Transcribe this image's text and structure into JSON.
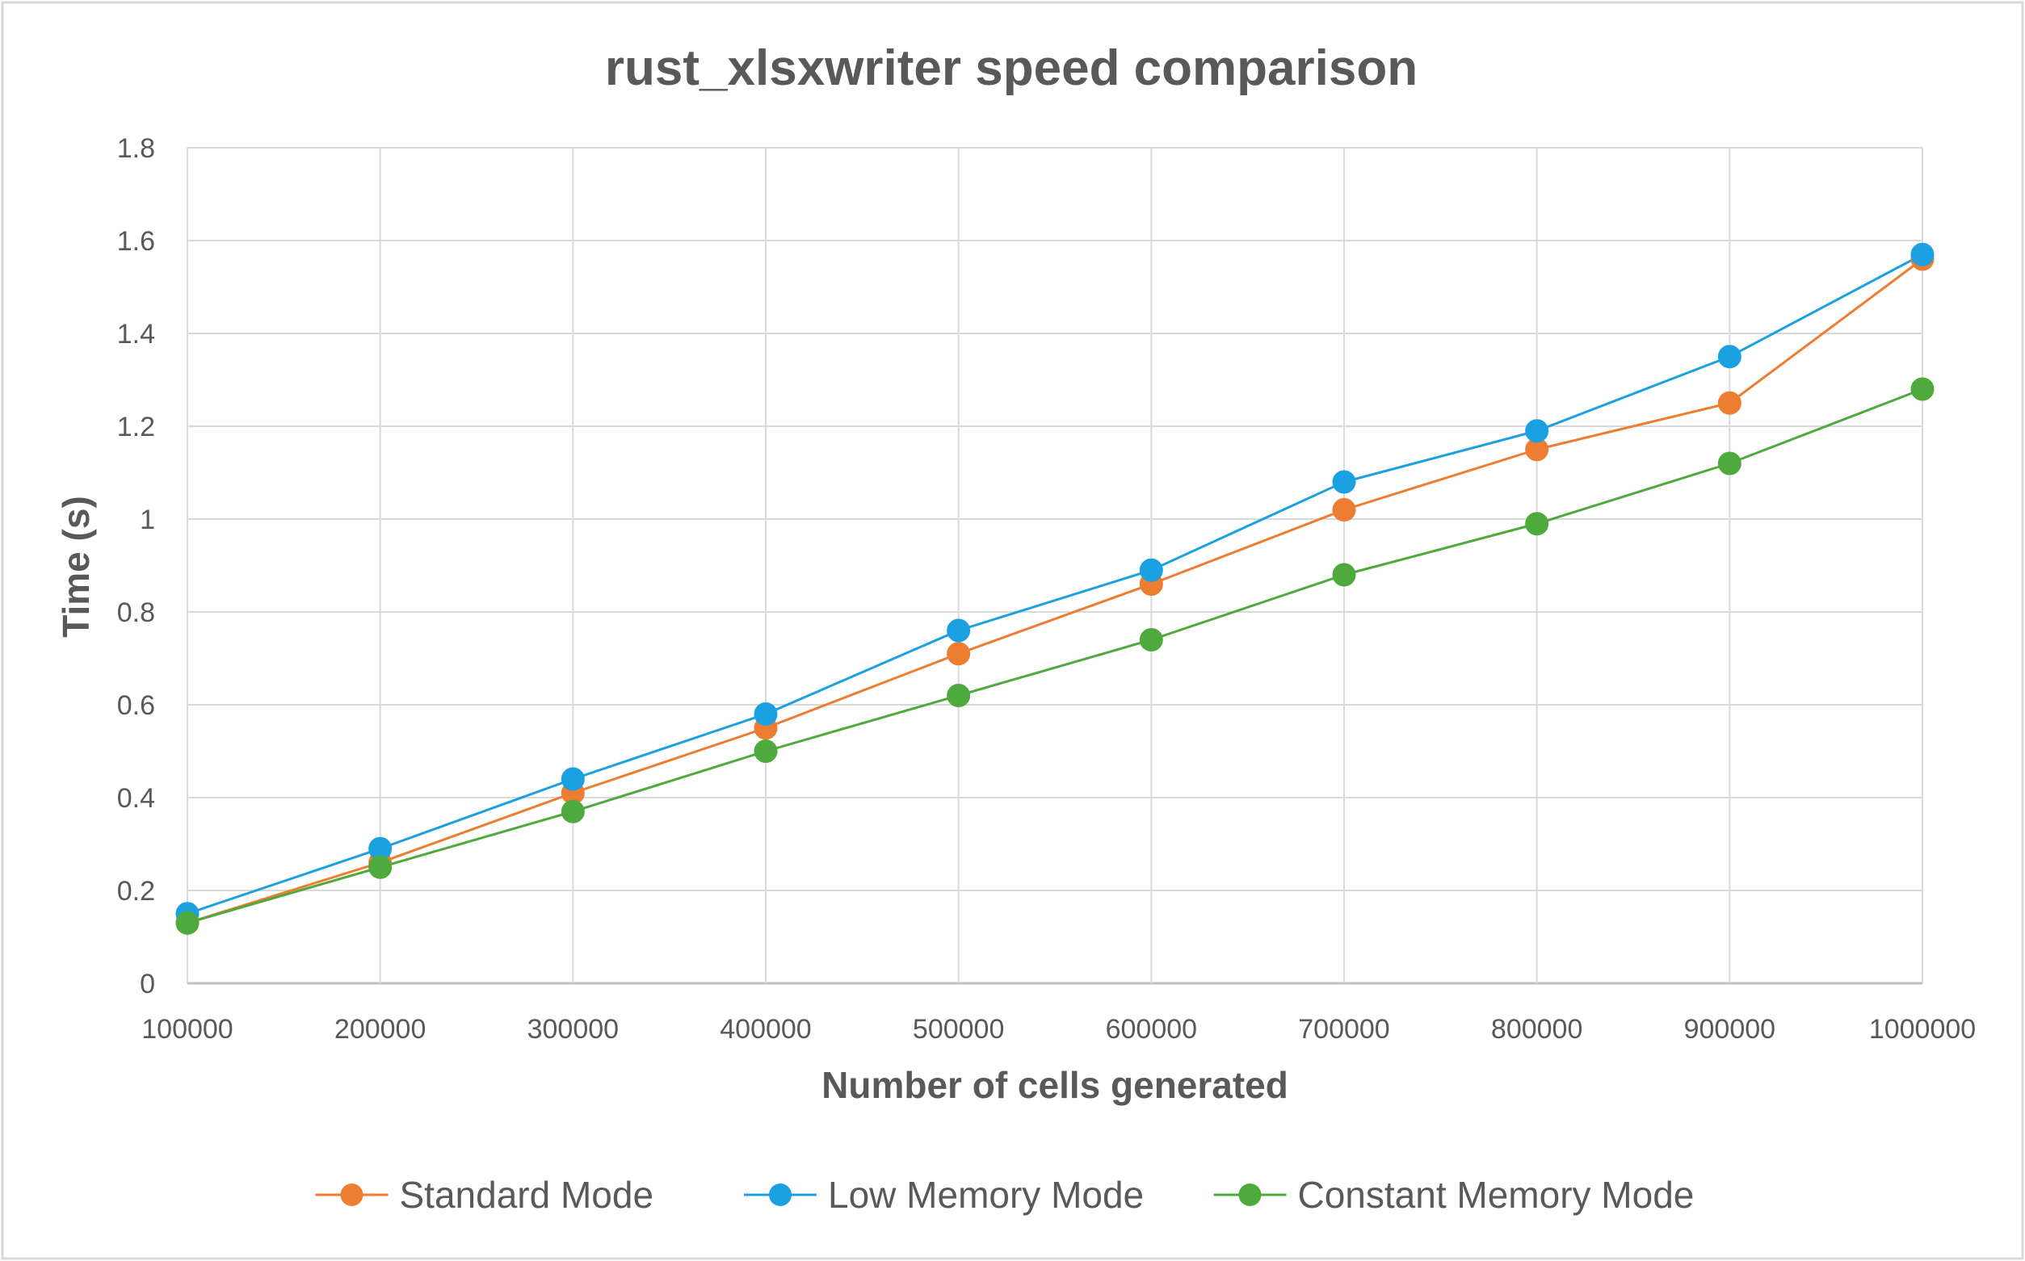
{
  "chart_data": {
    "type": "line",
    "title": "rust_xlsxwriter speed comparison",
    "xlabel": "Number of cells generated",
    "ylabel": "Time (s)",
    "x": [
      100000,
      200000,
      300000,
      400000,
      500000,
      600000,
      700000,
      800000,
      900000,
      1000000
    ],
    "x_tick_labels": [
      "100000",
      "200000",
      "300000",
      "400000",
      "500000",
      "600000",
      "700000",
      "800000",
      "900000",
      "1000000"
    ],
    "ylim": [
      0,
      1.8
    ],
    "y_ticks": [
      0,
      0.2,
      0.4,
      0.6,
      0.8,
      1,
      1.2,
      1.4,
      1.6,
      1.8
    ],
    "y_tick_labels": [
      "0",
      "0.2",
      "0.4",
      "0.6",
      "0.8",
      "1",
      "1.2",
      "1.4",
      "1.6",
      "1.8"
    ],
    "grid": true,
    "legend_position": "bottom",
    "series": [
      {
        "name": "Standard Mode",
        "color": "#ED7D31",
        "values": [
          0.13,
          0.26,
          0.41,
          0.55,
          0.71,
          0.86,
          1.02,
          1.15,
          1.25,
          1.56
        ]
      },
      {
        "name": "Low Memory Mode",
        "color": "#1BA1E2",
        "values": [
          0.15,
          0.29,
          0.44,
          0.58,
          0.76,
          0.89,
          1.08,
          1.19,
          1.35,
          1.57
        ]
      },
      {
        "name": "Constant Memory Mode",
        "color": "#4EAA3C",
        "values": [
          0.13,
          0.25,
          0.37,
          0.5,
          0.62,
          0.74,
          0.88,
          0.99,
          1.12,
          1.28
        ]
      }
    ]
  }
}
